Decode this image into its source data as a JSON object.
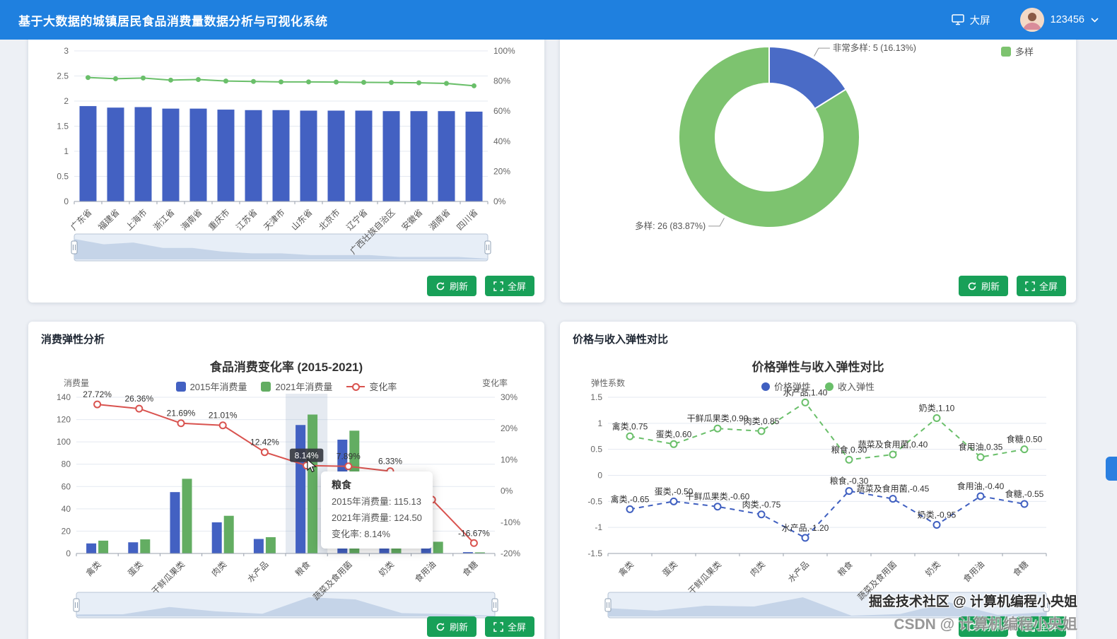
{
  "header": {
    "title": "基于大数据的城镇居民食品消费量数据分析与可视化系统",
    "big_screen": "大屏",
    "username": "123456"
  },
  "buttons": {
    "refresh": "刷新",
    "fullscreen": "全屏"
  },
  "panels": {
    "change": {
      "title": "消费弹性分析"
    },
    "elasticity": {
      "title": "价格与收入弹性对比"
    }
  },
  "tooltip": {
    "title": "粮食",
    "lines": [
      "2015年消费量: 115.13",
      "2021年消费量: 124.50",
      "变化率: 8.14%"
    ]
  },
  "watermark": {
    "line1": "掘金技术社区 @ 计算机编程小央姐",
    "line2": "CSDN @ 计算机编程小央姐"
  },
  "colors": {
    "header_blue": "#1f80df",
    "bar_blue": "#4361c2",
    "bar_green": "#63ad62",
    "line_green": "#6abf6a",
    "line_red": "#d9534f",
    "pie_green": "#7dc36f",
    "pie_blue": "#4a6bc6",
    "button_green": "#18a058"
  },
  "chart_data": [
    {
      "type": "bar+line",
      "title": "",
      "categories": [
        "广东省",
        "福建省",
        "上海市",
        "浙江省",
        "海南省",
        "重庆市",
        "江苏省",
        "天津市",
        "山东省",
        "北京市",
        "辽宁省",
        "广西壮族自治区",
        "安徽省",
        "湖南省",
        "四川省"
      ],
      "series": [
        {
          "name": "",
          "type": "bar",
          "axis": "left",
          "color": "#4361c2",
          "values": [
            1.9,
            1.87,
            1.88,
            1.85,
            1.85,
            1.83,
            1.82,
            1.82,
            1.81,
            1.81,
            1.81,
            1.8,
            1.8,
            1.8,
            1.79
          ]
        },
        {
          "name": "",
          "type": "line",
          "axis": "right",
          "color": "#6abf6a",
          "marker": "dot",
          "values": [
            82.3,
            81.5,
            82.0,
            80.6,
            81.0,
            80.0,
            79.7,
            79.4,
            79.4,
            79.3,
            79.1,
            79.0,
            78.8,
            78.4,
            76.8
          ]
        }
      ],
      "left_axis": {
        "min": 0,
        "max": 3,
        "ticks": [
          "3",
          "2.5",
          "2",
          "1.5",
          "1",
          "0.5",
          "0"
        ]
      },
      "right_axis": {
        "min": 0,
        "max": 100,
        "ticks": [
          "100%",
          "80%",
          "60%",
          "40%",
          "20%",
          "0%"
        ]
      }
    },
    {
      "type": "pie",
      "title": "",
      "slices": [
        {
          "name": "非常多样",
          "value": 5,
          "pct": "16.13%",
          "label": "非常多样: 5 (16.13%)",
          "color": "#4a6bc6"
        },
        {
          "name": "多样",
          "value": 26,
          "pct": "83.87%",
          "label": "多样: 26 (83.87%)",
          "color": "#7dc36f"
        }
      ],
      "legend": [
        "多样"
      ]
    },
    {
      "type": "bar+line",
      "title": "食品消费变化率 (2015-2021)",
      "left_axis_name": "消费量",
      "right_axis_name": "变化率",
      "categories": [
        "禽类",
        "蛋类",
        "干鲜瓜果类",
        "肉类",
        "水产品",
        "粮食",
        "蔬菜及食用菌",
        "奶类",
        "食用油",
        "食糖"
      ],
      "series": [
        {
          "name": "2015年消费量",
          "type": "bar",
          "axis": "left",
          "color": "#4361c2",
          "values": [
            9.0,
            10.0,
            55.0,
            27.9,
            13.0,
            115.13,
            102.0,
            17.0,
            10.8,
            1.2
          ]
        },
        {
          "name": "2021年消费量",
          "type": "bar",
          "axis": "left",
          "color": "#63ad62",
          "values": [
            11.49,
            12.64,
            66.93,
            33.76,
            14.61,
            124.5,
            110.05,
            18.08,
            10.5,
            1.0
          ]
        },
        {
          "name": "变化率",
          "type": "line",
          "axis": "right",
          "color": "#d9534f",
          "marker": "ring",
          "emphasis_index": 5,
          "values": [
            27.72,
            26.36,
            21.69,
            21.01,
            12.42,
            8.14,
            7.89,
            6.33,
            -2.78,
            -16.67
          ],
          "labels": [
            "27.72%",
            "26.36%",
            "21.69%",
            "21.01%",
            "12.42%",
            "8.14%",
            "7.89%",
            "6.33%",
            "",
            "-16.67%"
          ]
        }
      ],
      "left_axis": {
        "min": 0,
        "max": 140,
        "ticks": [
          "140",
          "120",
          "100",
          "80",
          "60",
          "40",
          "20",
          "0"
        ]
      },
      "right_axis": {
        "min": -20,
        "max": 30,
        "ticks": [
          "30%",
          "20%",
          "10%",
          "0%",
          "-10%",
          "-20%"
        ]
      },
      "highlight_category": "粮食"
    },
    {
      "type": "line",
      "title": "价格弹性与收入弹性对比",
      "left_axis_name": "弹性系数",
      "categories": [
        "禽类",
        "蛋类",
        "干鲜瓜果类",
        "肉类",
        "水产品",
        "粮食",
        "蔬菜及食用菌",
        "奶类",
        "食用油",
        "食糖"
      ],
      "series": [
        {
          "name": "价格弹性",
          "type": "line",
          "axis": "left",
          "color": "#3f5fc0",
          "marker": "ring",
          "dashed": true,
          "values": [
            -0.65,
            -0.5,
            -0.6,
            -0.75,
            -1.2,
            -0.3,
            -0.45,
            -0.95,
            -0.4,
            -0.55
          ],
          "labels": [
            "禽类,-0.65",
            "蛋类,-0.50",
            "干鲜瓜果类,-0.60",
            "肉类,-0.75",
            "水产品,-1.20",
            "粮食,-0.30",
            "蔬菜及食用菌,-0.45",
            "奶类,-0.95",
            "食用油,-0.40",
            "食糖,-0.55"
          ]
        },
        {
          "name": "收入弹性",
          "type": "line",
          "axis": "left",
          "color": "#6abf6a",
          "marker": "ring",
          "dashed": true,
          "values": [
            0.75,
            0.6,
            0.9,
            0.85,
            1.4,
            0.3,
            0.4,
            1.1,
            0.35,
            0.5
          ],
          "labels": [
            "禽类,0.75",
            "蛋类,0.60",
            "干鲜瓜果类,0.90",
            "肉类,0.85",
            "水产品,1.40",
            "粮食,0.30",
            "蔬菜及食用菌,0.40",
            "奶类,1.10",
            "食用油,0.35",
            "食糖,0.50"
          ]
        }
      ],
      "left_axis": {
        "min": -1.5,
        "max": 1.5,
        "ticks": [
          "1.5",
          "1",
          "0.5",
          "0",
          "-0.5",
          "-1",
          "-1.5"
        ]
      }
    }
  ]
}
